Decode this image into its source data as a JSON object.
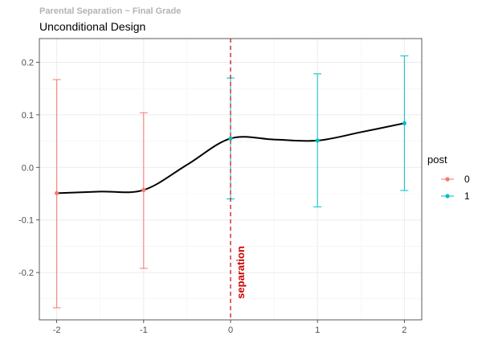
{
  "chart_data": {
    "type": "line",
    "subtitle": "Parental Separation ~ Final Grade",
    "title": "Unconditional Design",
    "xlabel": "",
    "ylabel": "",
    "xlim": [
      -2.2,
      2.2
    ],
    "ylim": [
      -0.29,
      0.245
    ],
    "x_ticks": [
      -2,
      -1,
      0,
      1,
      2
    ],
    "x_tick_labels": [
      "-2",
      "-1",
      "0",
      "1",
      "2"
    ],
    "y_ticks": [
      -0.2,
      -0.1,
      0.0,
      0.1,
      0.2
    ],
    "y_tick_labels": [
      "-0.2",
      "-0.1",
      "0.0",
      "0.1",
      "0.2"
    ],
    "grid": true,
    "legend": {
      "title": "post",
      "position": "right",
      "entries": [
        {
          "label": "0",
          "color": "#F8766D"
        },
        {
          "label": "1",
          "color": "#00BFC4"
        }
      ]
    },
    "series": [
      {
        "name": "0",
        "color": "#F8766D",
        "points": [
          {
            "x": -2,
            "y": -0.049,
            "lo": -0.267,
            "hi": 0.167
          },
          {
            "x": -1,
            "y": -0.043,
            "lo": -0.192,
            "hi": 0.104
          }
        ]
      },
      {
        "name": "1",
        "color": "#00BFC4",
        "points": [
          {
            "x": 0,
            "y": 0.055,
            "lo": -0.06,
            "hi": 0.17
          },
          {
            "x": 1,
            "y": 0.051,
            "lo": -0.075,
            "hi": 0.178
          },
          {
            "x": 2,
            "y": 0.084,
            "lo": -0.044,
            "hi": 0.212
          }
        ]
      }
    ],
    "smooth_line": {
      "color": "#000000",
      "x": [
        -2,
        -1.5,
        -1,
        -0.5,
        0,
        0.5,
        1,
        1.5,
        2
      ],
      "y": [
        -0.049,
        -0.046,
        -0.043,
        0.005,
        0.055,
        0.053,
        0.051,
        0.067,
        0.084
      ]
    },
    "vline": {
      "x": 0,
      "color": "#CC0000",
      "label": "separation"
    }
  }
}
